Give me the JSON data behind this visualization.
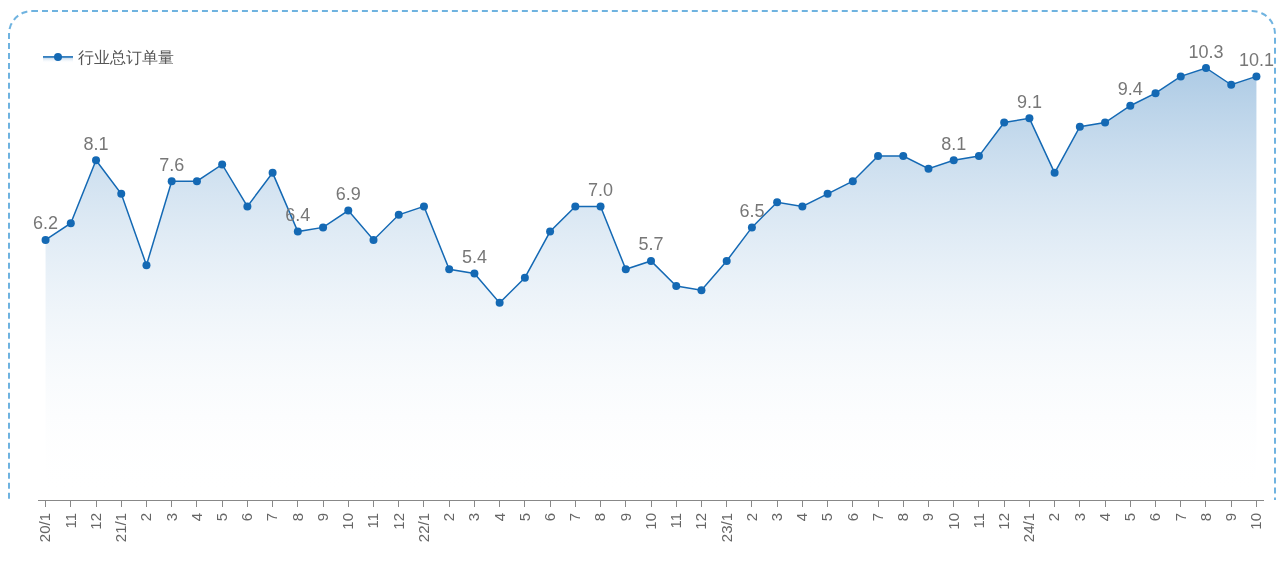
{
  "chart_data": {
    "type": "area",
    "categories": [
      "20/1",
      "11",
      "12",
      "21/1",
      "2",
      "3",
      "4",
      "5",
      "6",
      "7",
      "8",
      "9",
      "10",
      "11",
      "12",
      "22/1",
      "2",
      "3",
      "4",
      "5",
      "6",
      "7",
      "8",
      "9",
      "10",
      "11",
      "12",
      "23/1",
      "2",
      "3",
      "4",
      "5",
      "6",
      "7",
      "8",
      "9",
      "10",
      "11",
      "12",
      "24/1",
      "2",
      "3",
      "4",
      "5",
      "6",
      "7",
      "8",
      "9",
      "10"
    ],
    "series": [
      {
        "name": "行业总订单量",
        "color": "#1469b4",
        "values": [
          6.2,
          6.6,
          8.1,
          7.3,
          5.6,
          7.6,
          7.6,
          8.0,
          7.0,
          7.8,
          6.4,
          6.5,
          6.9,
          6.2,
          6.8,
          7.0,
          5.5,
          5.4,
          4.7,
          5.3,
          6.4,
          7.0,
          7.0,
          5.5,
          5.7,
          5.1,
          5.0,
          5.7,
          6.5,
          7.1,
          7.0,
          7.3,
          7.6,
          8.2,
          8.2,
          7.9,
          8.1,
          8.2,
          9.0,
          9.1,
          7.8,
          8.9,
          9.0,
          9.4,
          9.7,
          10.1,
          10.3,
          9.9,
          10.1
        ],
        "value_labels": [
          "6.2",
          null,
          "8.1",
          null,
          null,
          "7.6",
          null,
          null,
          null,
          null,
          "6.4",
          null,
          "6.9",
          null,
          null,
          null,
          null,
          "5.4",
          null,
          null,
          null,
          null,
          "7.0",
          null,
          "5.7",
          null,
          null,
          null,
          "6.5",
          null,
          null,
          null,
          null,
          null,
          null,
          null,
          "8.1",
          null,
          null,
          "9.1",
          null,
          null,
          null,
          "9.4",
          null,
          null,
          "10.3",
          null,
          "10.1"
        ]
      }
    ],
    "tick_labels": "x",
    "grid": false,
    "legend": "top left",
    "marker": "circle",
    "line_style": "solid"
  }
}
